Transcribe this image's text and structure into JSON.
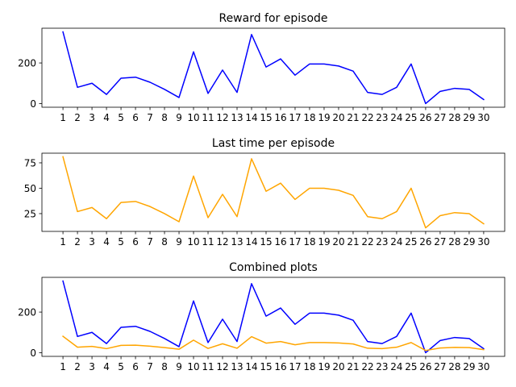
{
  "colors": {
    "reward": "#0000ff",
    "last_time": "#ffa500",
    "background": "#ffffff",
    "axes": "#000000"
  },
  "chart_data": [
    {
      "type": "line",
      "title": "Reward for episode",
      "categories": [
        "1",
        "2",
        "3",
        "4",
        "5",
        "6",
        "7",
        "8",
        "9",
        "10",
        "11",
        "12",
        "13",
        "14",
        "15",
        "16",
        "17",
        "18",
        "19",
        "20",
        "21",
        "22",
        "23",
        "24",
        "25",
        "26",
        "27",
        "28",
        "29",
        "30"
      ],
      "series": [
        {
          "color": "#0000ff",
          "values": [
            353,
            80,
            100,
            45,
            125,
            130,
            105,
            70,
            30,
            255,
            50,
            165,
            55,
            340,
            180,
            220,
            140,
            195,
            195,
            185,
            160,
            55,
            45,
            80,
            195,
            0,
            60,
            75,
            70,
            20
          ]
        }
      ],
      "yticks": [
        0,
        200
      ],
      "ylim": [
        -18,
        371
      ],
      "grid": false
    },
    {
      "type": "line",
      "title": "Last time per episode",
      "categories": [
        "1",
        "2",
        "3",
        "4",
        "5",
        "6",
        "7",
        "8",
        "9",
        "10",
        "11",
        "12",
        "13",
        "14",
        "15",
        "16",
        "17",
        "18",
        "19",
        "20",
        "21",
        "22",
        "23",
        "24",
        "25",
        "26",
        "27",
        "28",
        "29",
        "30"
      ],
      "series": [
        {
          "color": "#ffa500",
          "values": [
            81,
            27,
            31,
            20,
            36,
            37,
            32,
            25,
            17,
            62,
            21,
            44,
            22,
            79,
            47,
            55,
            39,
            50,
            50,
            48,
            43,
            22,
            20,
            27,
            50,
            11,
            23,
            26,
            25,
            15
          ]
        }
      ],
      "yticks": [
        25,
        50,
        75
      ],
      "ylim": [
        7.5,
        84.5
      ],
      "grid": false
    },
    {
      "type": "line",
      "title": "Combined plots",
      "categories": [
        "1",
        "2",
        "3",
        "4",
        "5",
        "6",
        "7",
        "8",
        "9",
        "10",
        "11",
        "12",
        "13",
        "14",
        "15",
        "16",
        "17",
        "18",
        "19",
        "20",
        "21",
        "22",
        "23",
        "24",
        "25",
        "26",
        "27",
        "28",
        "29",
        "30"
      ],
      "series": [
        {
          "color": "#0000ff",
          "values": [
            353,
            80,
            100,
            45,
            125,
            130,
            105,
            70,
            30,
            255,
            50,
            165,
            55,
            340,
            180,
            220,
            140,
            195,
            195,
            185,
            160,
            55,
            45,
            80,
            195,
            0,
            60,
            75,
            70,
            20
          ]
        },
        {
          "color": "#ffa500",
          "values": [
            81,
            27,
            31,
            20,
            36,
            37,
            32,
            25,
            17,
            62,
            21,
            44,
            22,
            79,
            47,
            55,
            39,
            50,
            50,
            48,
            43,
            22,
            20,
            27,
            50,
            11,
            23,
            26,
            25,
            15
          ]
        }
      ],
      "yticks": [
        0,
        200
      ],
      "ylim": [
        -18,
        371
      ],
      "grid": false
    }
  ]
}
